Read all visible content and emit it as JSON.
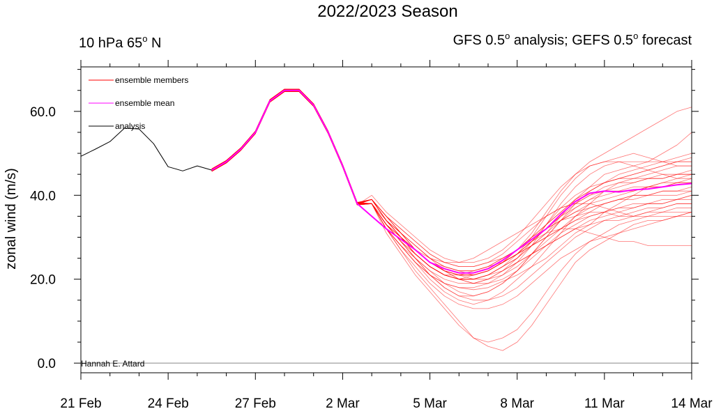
{
  "title": "2022/2023 Season",
  "subtitle_left": {
    "text": "10 hPa 65",
    "sup": "o",
    "after": " N"
  },
  "subtitle_right": {
    "parts": [
      {
        "text": "GFS 0.5",
        "sup": "o"
      },
      {
        "text": " analysis; GEFS 0.5",
        "sup": "o"
      },
      {
        "text": " forecast",
        "sup": ""
      }
    ]
  },
  "credit": "Hannah E. Attard",
  "chart_data": {
    "type": "line",
    "title": "2022/2023 Season",
    "ylabel": "zonal wind (m/s)",
    "xlabel": "",
    "xlim": [
      0,
      21
    ],
    "ylim": [
      -2.3,
      70.6
    ],
    "x_unit": "days from 21 Feb 2023",
    "x_ticks": [
      {
        "x": 0,
        "label": "21 Feb"
      },
      {
        "x": 3,
        "label": "24 Feb"
      },
      {
        "x": 6,
        "label": "27 Feb"
      },
      {
        "x": 9,
        "label": "2 Mar"
      },
      {
        "x": 12,
        "label": "5 Mar"
      },
      {
        "x": 15,
        "label": "8 Mar"
      },
      {
        "x": 18,
        "label": "11 Mar"
      },
      {
        "x": 21,
        "label": "14 Mar"
      }
    ],
    "y_ticks": [
      {
        "y": 0,
        "label": "0.0"
      },
      {
        "y": 20,
        "label": "20.0"
      },
      {
        "y": 40,
        "label": "40.0"
      },
      {
        "y": 60,
        "label": "60.0"
      }
    ],
    "zero_line": true,
    "grid": false,
    "legend_position": "top-left",
    "legend": [
      {
        "label": "ensemble members",
        "color": "#ff0000"
      },
      {
        "label": "ensemble mean",
        "color": "#ff00ff"
      },
      {
        "label": "analysis",
        "color": "#000000"
      }
    ],
    "colors": {
      "members": "#ff0000",
      "mean": "#ff00ff",
      "analysis": "#000000"
    },
    "series": [
      {
        "name": "analysis",
        "role": "analysis",
        "x": [
          0,
          0.5,
          1,
          1.5,
          2,
          2.5,
          3,
          3.5,
          4,
          4.5
        ],
        "y": [
          49.3,
          51,
          52.8,
          56,
          55.8,
          52.3,
          46.8,
          45.8,
          47,
          46
        ]
      },
      {
        "name": "ensemble mean",
        "role": "mean",
        "x": [
          4.5,
          5,
          5.5,
          6,
          6.5,
          7,
          7.5,
          8,
          8.5,
          9,
          9.5,
          10,
          10.5,
          11,
          11.5,
          12,
          12.5,
          13,
          13.5,
          14,
          14.5,
          15,
          15.5,
          16,
          16.5,
          17,
          17.5,
          18,
          18.5,
          19,
          19.5,
          20,
          20.5,
          21
        ],
        "y": [
          46,
          48,
          51,
          55,
          62.5,
          65,
          65,
          61.5,
          55,
          47,
          38,
          35,
          32,
          29.5,
          27,
          24,
          22.5,
          21.5,
          21.5,
          22.5,
          24.5,
          27,
          29.5,
          32,
          35.5,
          38.5,
          40.5,
          41,
          40.8,
          41.3,
          41.5,
          42,
          42.5,
          42.8
        ]
      },
      {
        "name": "ensemble members",
        "role": "members",
        "x": [
          10,
          10.5,
          11,
          11.5,
          12,
          12.5,
          13,
          13.5,
          14,
          14.5,
          15,
          15.5,
          16,
          16.5,
          17,
          17.5,
          18,
          18.5,
          19,
          19.5,
          20,
          20.5,
          21
        ],
        "members": [
          [
            38,
            33,
            29,
            25,
            21,
            19,
            18,
            17.5,
            18,
            19.5,
            21,
            23,
            25,
            28,
            31,
            33,
            36,
            38,
            40,
            42,
            43,
            44,
            45
          ],
          [
            39,
            34,
            31,
            27,
            24,
            22,
            21,
            20,
            21,
            23,
            25,
            28,
            31,
            35,
            39,
            42,
            45,
            46,
            47,
            48,
            50,
            52,
            55
          ],
          [
            38,
            32,
            28,
            24,
            20,
            17,
            15,
            14,
            15,
            17,
            20,
            23,
            27,
            31,
            35,
            38,
            41,
            43,
            44,
            45,
            46,
            47,
            47
          ],
          [
            39,
            35,
            31,
            28,
            25,
            23,
            22,
            22,
            23,
            25,
            27,
            30,
            32,
            34,
            35,
            36,
            36,
            35,
            35,
            36,
            37,
            38,
            38
          ],
          [
            38,
            33,
            30,
            27,
            24,
            22,
            20,
            19,
            19,
            20,
            22,
            25,
            28,
            31,
            33,
            35,
            36,
            37,
            38,
            38,
            39,
            39,
            40
          ],
          [
            40,
            36,
            33,
            30,
            27,
            25,
            24,
            24,
            25,
            27,
            30,
            34,
            38,
            42,
            45,
            47,
            48,
            49,
            50,
            49,
            48,
            48,
            48
          ],
          [
            38,
            32,
            27,
            22,
            18,
            14,
            10,
            6,
            5,
            6,
            8,
            12,
            17,
            22,
            26,
            29,
            31,
            33,
            34,
            35,
            36,
            36,
            36
          ],
          [
            38,
            31,
            26,
            21,
            17,
            13,
            9,
            6,
            4,
            3,
            5,
            9,
            14,
            19,
            24,
            27,
            29,
            31,
            33,
            34,
            34,
            35,
            36
          ],
          [
            39,
            34,
            31,
            27,
            24,
            22,
            21,
            21,
            22,
            24,
            27,
            31,
            36,
            41,
            45,
            48,
            50,
            52,
            54,
            56,
            58,
            60,
            61
          ],
          [
            39,
            35,
            31,
            28,
            25,
            23,
            22,
            21,
            22,
            24,
            26,
            28,
            30,
            32,
            34,
            35,
            36,
            37,
            37,
            38,
            38,
            39,
            39
          ],
          [
            38,
            32,
            27,
            23,
            19,
            16,
            14,
            13,
            13,
            14,
            16,
            19,
            22,
            25,
            27,
            29,
            30,
            31,
            32,
            33,
            34,
            35,
            35
          ],
          [
            38,
            33,
            29,
            25,
            21,
            18,
            16,
            15,
            15,
            16,
            18,
            21,
            24,
            27,
            30,
            32,
            34,
            35,
            36,
            37,
            37,
            38,
            38
          ],
          [
            39,
            35,
            32,
            29,
            26,
            24,
            23,
            23,
            24,
            26,
            29,
            32,
            35,
            37,
            38,
            38,
            37,
            36,
            35,
            35,
            35,
            35,
            36
          ],
          [
            38,
            33,
            29,
            25,
            22,
            19,
            17,
            16,
            17,
            19,
            22,
            26,
            30,
            34,
            37,
            39,
            41,
            42,
            43,
            44,
            44,
            45,
            45
          ],
          [
            39,
            34,
            30,
            26,
            23,
            21,
            20,
            20,
            21,
            23,
            25,
            28,
            31,
            34,
            36,
            38,
            39,
            40,
            41,
            42,
            42,
            43,
            43
          ],
          [
            38,
            33,
            30,
            27,
            25,
            24,
            24,
            25,
            27,
            29,
            31,
            33,
            35,
            37,
            38,
            40,
            41,
            41,
            42,
            42,
            43,
            43,
            44
          ],
          [
            39,
            34,
            30,
            27,
            24,
            22,
            21,
            21,
            22,
            24,
            27,
            30,
            33,
            36,
            39,
            41,
            43,
            44,
            45,
            46,
            47,
            48,
            49
          ],
          [
            38,
            32,
            28,
            24,
            21,
            19,
            18,
            18,
            19,
            21,
            24,
            28,
            33,
            38,
            42,
            45,
            47,
            48,
            48,
            48,
            48,
            47,
            47
          ],
          [
            38,
            33,
            30,
            26,
            23,
            21,
            20,
            20,
            21,
            22,
            24,
            26,
            28,
            30,
            32,
            33,
            34,
            34,
            35,
            36,
            36,
            37,
            37
          ],
          [
            39,
            35,
            31,
            28,
            25,
            22,
            20,
            19,
            20,
            22,
            25,
            29,
            33,
            37,
            40,
            42,
            43,
            44,
            44,
            44,
            45,
            45,
            45
          ],
          [
            38,
            32,
            28,
            24,
            21,
            18,
            16,
            16,
            17,
            19,
            22,
            26,
            30,
            34,
            38,
            41,
            43,
            45,
            46,
            47,
            48,
            49,
            50
          ],
          [
            39,
            34,
            30,
            26,
            23,
            21,
            20,
            20,
            21,
            23,
            26,
            30,
            35,
            40,
            44,
            47,
            48,
            48,
            47,
            46,
            45,
            44,
            44
          ],
          [
            38,
            33,
            29,
            26,
            23,
            21,
            21,
            21,
            22,
            24,
            26,
            28,
            30,
            32,
            34,
            36,
            38,
            39,
            40,
            40,
            41,
            41,
            41
          ],
          [
            39,
            34,
            31,
            27,
            24,
            22,
            21,
            22,
            23,
            25,
            27,
            29,
            31,
            32,
            32,
            31,
            30,
            29,
            29,
            28,
            28,
            28,
            28
          ],
          [
            38,
            33,
            29,
            26,
            23,
            21,
            20,
            21,
            22,
            24,
            26,
            29,
            32,
            35,
            38,
            40,
            42,
            43,
            43,
            44,
            44,
            45,
            46
          ],
          [
            38,
            34,
            30,
            27,
            24,
            23,
            22,
            22,
            23,
            24,
            26,
            29,
            32,
            35,
            37,
            39,
            40,
            41,
            41,
            42,
            42,
            43,
            43
          ],
          [
            39,
            35,
            32,
            29,
            26,
            24,
            23,
            23,
            24,
            25,
            27,
            30,
            33,
            36,
            39,
            41,
            43,
            44,
            45,
            46,
            47,
            48,
            48
          ],
          [
            38,
            32,
            28,
            25,
            22,
            20,
            19,
            19,
            20,
            22,
            24,
            26,
            28,
            30,
            32,
            34,
            35,
            36,
            37,
            38,
            38,
            39,
            40
          ],
          [
            39,
            34,
            30,
            27,
            24,
            22,
            21,
            21,
            22,
            24,
            26,
            29,
            32,
            34,
            36,
            37,
            38,
            39,
            40,
            40,
            41,
            41,
            42
          ],
          [
            38,
            33,
            30,
            26,
            23,
            21,
            20,
            20,
            20,
            21,
            23,
            26,
            29,
            32,
            35,
            37,
            38,
            39,
            39,
            40,
            40,
            40,
            41
          ]
        ]
      }
    ]
  }
}
